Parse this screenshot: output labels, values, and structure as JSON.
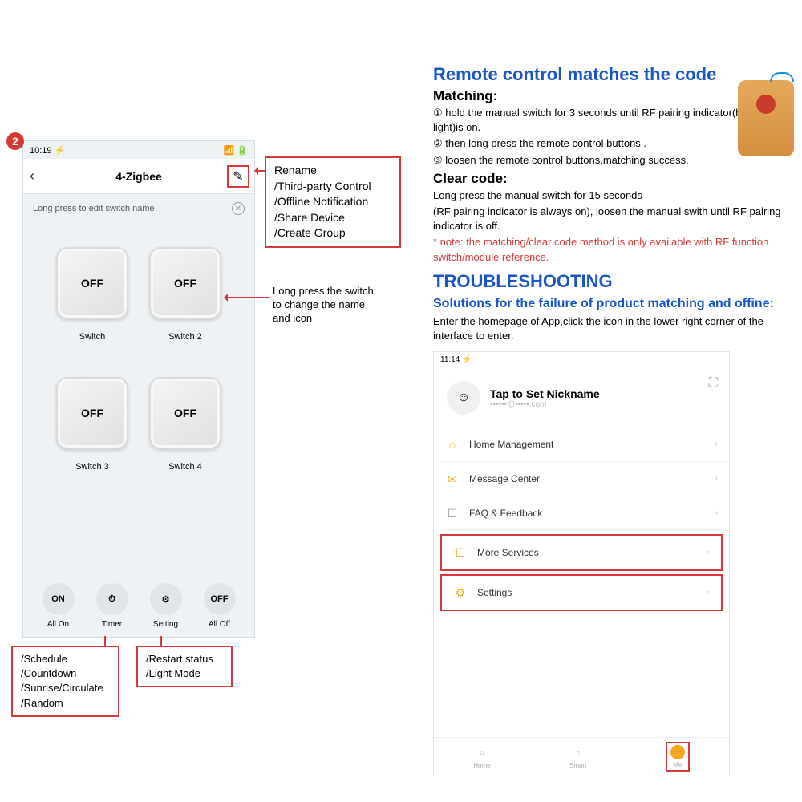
{
  "badge": "2",
  "phone": {
    "time": "10:19 ⚡",
    "status_right": "📶 🔋",
    "title": "4-Zigbee",
    "subheader": "Long press to edit switch name",
    "switches": [
      {
        "state": "OFF",
        "label": "Switch"
      },
      {
        "state": "OFF",
        "label": "Switch 2"
      },
      {
        "state": "OFF",
        "label": "Switch 3"
      },
      {
        "state": "OFF",
        "label": "Switch 4"
      }
    ],
    "bottom": [
      {
        "icon": "ON",
        "label": "All On"
      },
      {
        "icon": "⏱",
        "label": "Timer"
      },
      {
        "icon": "⚙",
        "label": "Setting"
      },
      {
        "icon": "OFF",
        "label": "All Off"
      }
    ]
  },
  "callouts": {
    "pencil": [
      "Rename",
      "/Third-party Control",
      "/Offline Notification",
      "/Share Device",
      "/Create Group"
    ],
    "switch_note": [
      "Long press the switch",
      "to change the name",
      "and icon"
    ],
    "timer": [
      "/Schedule",
      "/Countdown",
      "/Sunrise/Circulate",
      "/Random"
    ],
    "setting": [
      "/Restart status",
      "/Light Mode"
    ]
  },
  "right": {
    "h2": "Remote control matches the code",
    "matching_h": "Matching:",
    "matching_steps": [
      "① hold the manual switch for 3 seconds until RF pairing indicator(blue light)is on.",
      "② then long press the remote control buttons .",
      "③ loosen the remote control buttons,matching success."
    ],
    "clear_h": "Clear code:",
    "clear_lines": [
      "Long press the manual switch for 15 seconds",
      "(RF pairing indicator is always on), loosen the manual swith until RF pairing indicator is off."
    ],
    "note": "* note: the matching/clear code method is only available with RF function switch/module reference.",
    "trouble_h": "TROUBLESHOOTING",
    "trouble_sub": "Solutions for the failure of product matching and offine:",
    "trouble_body": "Enter the homepage of App,click the icon in the lower right corner of the interface to enter."
  },
  "phone2": {
    "time": "11:14 ⚡",
    "nick": "Tap to Set Nickname",
    "email": "••••••@•••••.com",
    "items": [
      {
        "icon": "⌂",
        "label": "Home Management",
        "boxed": false,
        "color": "#f5a623"
      },
      {
        "icon": "✉",
        "label": "Message Center",
        "boxed": false,
        "color": "#f5a623"
      },
      {
        "icon": "☐",
        "label": "FAQ & Feedback",
        "boxed": false,
        "color": "#999"
      },
      {
        "icon": "☐",
        "label": "More Services",
        "boxed": true,
        "color": "#f5a623"
      },
      {
        "icon": "⚙",
        "label": "Settings",
        "boxed": true,
        "color": "#f5a623"
      }
    ],
    "tabs": [
      {
        "label": "Home"
      },
      {
        "label": "Smart"
      },
      {
        "label": "Me"
      }
    ]
  }
}
